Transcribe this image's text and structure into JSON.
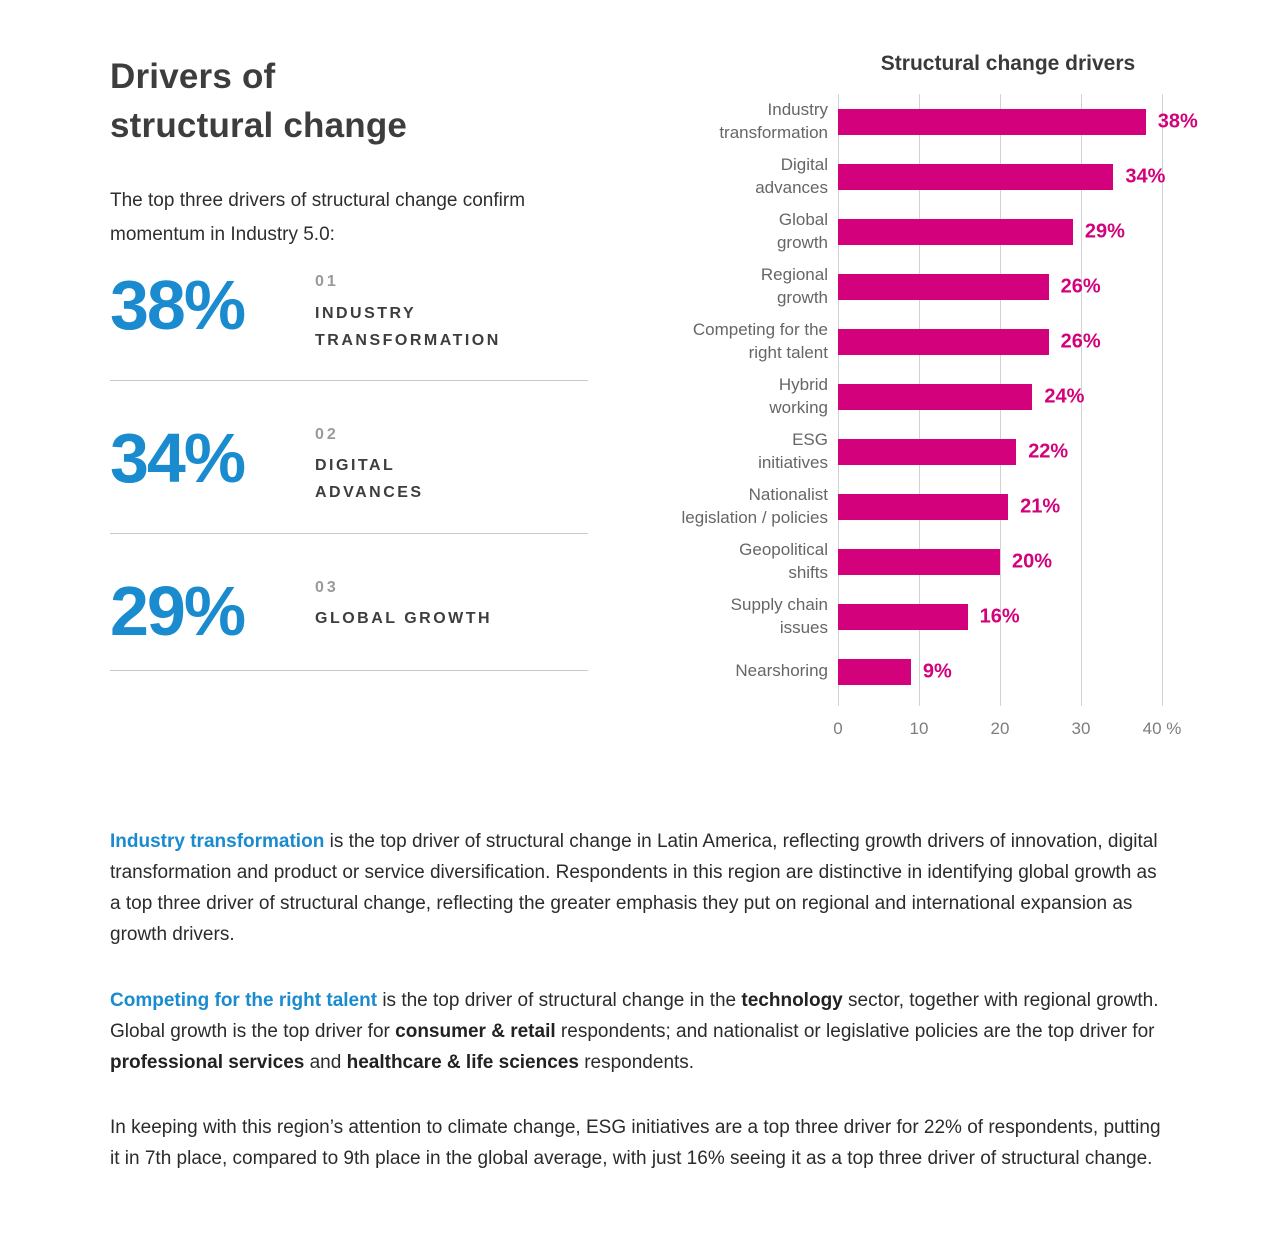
{
  "theme": {
    "accent_blue": "#1a8bce",
    "accent_magenta": "#d4017c",
    "title_gray": "#3d3d3d"
  },
  "page": {
    "title": "Drivers of\nstructural change",
    "intro": "The top three drivers of structural change confirm momentum in Industry 5.0:"
  },
  "stats": [
    {
      "value": "38%",
      "index": "01",
      "label": "INDUSTRY\nTRANSFORMATION"
    },
    {
      "value": "34%",
      "index": "02",
      "label": "DIGITAL\nADVANCES"
    },
    {
      "value": "29%",
      "index": "03",
      "label": "GLOBAL GROWTH"
    }
  ],
  "chart_data": {
    "type": "bar",
    "orientation": "horizontal",
    "title": "Structural change drivers",
    "categories": [
      "Industry\ntransformation",
      "Digital\nadvances",
      "Global\ngrowth",
      "Regional\ngrowth",
      "Competing for the\nright talent",
      "Hybrid\nworking",
      "ESG\ninitiatives",
      "Nationalist\nlegislation / policies",
      "Geopolitical\nshifts",
      "Supply chain\nissues",
      "Nearshoring"
    ],
    "values": [
      38,
      34,
      29,
      26,
      26,
      24,
      22,
      21,
      20,
      16,
      9
    ],
    "value_labels": [
      "38%",
      "34%",
      "29%",
      "26%",
      "26%",
      "24%",
      "22%",
      "21%",
      "20%",
      "16%",
      "9%"
    ],
    "xlim": [
      0,
      40
    ],
    "ticks": [
      {
        "value": 0,
        "label": "0"
      },
      {
        "value": 10,
        "label": "10"
      },
      {
        "value": 20,
        "label": "20"
      },
      {
        "value": 30,
        "label": "30"
      },
      {
        "value": 40,
        "label": "40 %"
      }
    ],
    "grid": true,
    "bar_color": "#d4017c",
    "value_label_color": "#d4017c"
  },
  "paragraphs": [
    {
      "segments": [
        {
          "style": "highlight",
          "text": "Industry transformation"
        },
        {
          "style": "normal",
          "text": " is the top driver of structural change in Latin America, reflecting growth drivers of innovation, digital transformation and product or service diversification. Respondents in this region are distinctive in identifying global growth as a top three driver of structural change, reflecting the greater emphasis they put on regional and international expansion as growth drivers."
        }
      ]
    },
    {
      "segments": [
        {
          "style": "highlight",
          "text": "Competing for the right talent"
        },
        {
          "style": "normal",
          "text": " is the top driver of structural change in the "
        },
        {
          "style": "bold",
          "text": "technology"
        },
        {
          "style": "normal",
          "text": " sector, together with regional growth. Global growth is the top driver for "
        },
        {
          "style": "bold",
          "text": "consumer & retail"
        },
        {
          "style": "normal",
          "text": " respondents; and nationalist or legislative policies are the top driver for "
        },
        {
          "style": "bold",
          "text": "professional services"
        },
        {
          "style": "normal",
          "text": " and "
        },
        {
          "style": "bold",
          "text": "healthcare & life sciences"
        },
        {
          "style": "normal",
          "text": " respondents."
        }
      ]
    },
    {
      "segments": [
        {
          "style": "normal",
          "text": "In keeping with this region’s attention to climate change, ESG initiatives are a top three driver for 22% of respondents, putting it in 7th place, compared to 9th place in the global average, with just 16% seeing it as a top three driver of structural change."
        }
      ]
    }
  ]
}
